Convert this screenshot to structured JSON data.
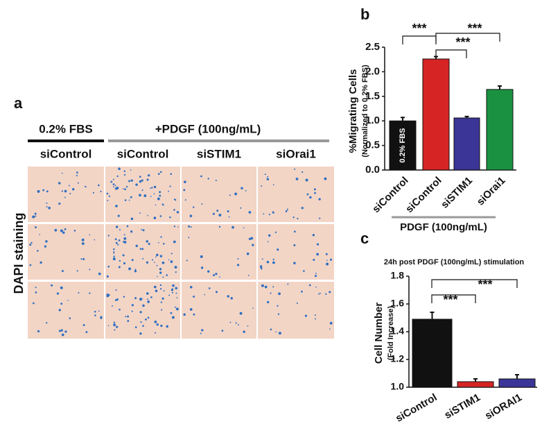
{
  "figure": {
    "panel_a": {
      "label": "a",
      "group_1": "0.2% FBS",
      "group_2": "+PDGF (100ng/mL)",
      "columns": [
        "siControl",
        "siControl",
        "siSTIM1",
        "siOrai1"
      ],
      "row_label": "DAPI staining"
    }
  },
  "chart_data": [
    {
      "type": "bar",
      "panel": "b",
      "y_label": [
        "%Migrating Cells",
        "(Normalized to 0.2% FBS)"
      ],
      "categories": [
        "siControl",
        "siControl",
        "siSTIM1",
        "siOrai1"
      ],
      "values": [
        1.0,
        2.26,
        1.06,
        1.64
      ],
      "errors": [
        0.07,
        0.05,
        0.03,
        0.07
      ],
      "colors": [
        "#111111",
        "#d62424",
        "#3a3596",
        "#1a9141"
      ],
      "bar_annotation": "0.2% FBS",
      "group_label": "PDGF (100ng/mL)",
      "significance": [
        "***",
        "***",
        "***"
      ],
      "ylim": [
        0,
        2.5
      ],
      "yticks": [
        {
          "value": 0,
          "label": "0.0"
        },
        0.5,
        {
          "value": 1,
          "label": "1.0"
        },
        1.5,
        {
          "value": 2,
          "label": "2.0"
        },
        2.5
      ]
    },
    {
      "type": "bar",
      "panel": "c",
      "title": "24h post PDGF (100ng/mL) stimulation",
      "y_label": [
        "Cell Number",
        "(Fold Increase)"
      ],
      "categories": [
        "siControl",
        "siSTIM1",
        "siORAI1"
      ],
      "values": [
        1.49,
        1.04,
        1.06
      ],
      "errors": [
        0.05,
        0.02,
        0.03
      ],
      "colors": [
        "#111111",
        "#d62424",
        "#3a3596"
      ],
      "significance": [
        "***",
        "***"
      ],
      "ylim": [
        1.0,
        1.8
      ],
      "yticks": [
        {
          "value": 1,
          "label": "1.0"
        },
        1.2,
        1.4,
        1.6,
        1.8
      ]
    }
  ]
}
